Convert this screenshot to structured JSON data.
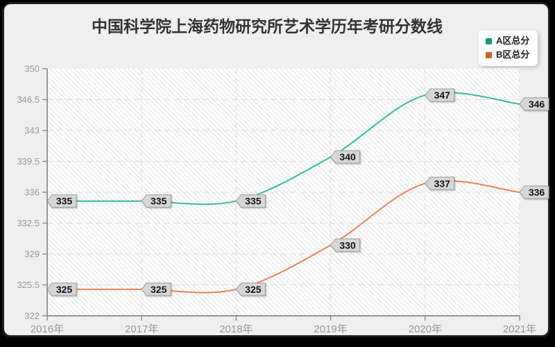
{
  "title": "中国科学院上海药物研究所艺术学历年考研分数线",
  "legend": {
    "items": [
      {
        "label": "A区总分",
        "color": "#0f9d6e"
      },
      {
        "label": "B区总分",
        "color": "#d4622b"
      }
    ]
  },
  "chart_data": {
    "type": "line",
    "title": "中国科学院上海药物研究所艺术学历年考研分数线",
    "categories": [
      "2016年",
      "2017年",
      "2018年",
      "2019年",
      "2020年",
      "2021年"
    ],
    "series": [
      {
        "name": "A区总分",
        "values": [
          335,
          335,
          335,
          340,
          347,
          346
        ],
        "marker_color": "#0f9d6e",
        "line_color": "#33c093"
      },
      {
        "name": "B区总分",
        "values": [
          325,
          325,
          325,
          330,
          337,
          336
        ],
        "marker_color": "#d4622b",
        "line_color": "#ec8351"
      }
    ],
    "xlabel": "",
    "ylabel": "",
    "ylim": [
      322,
      350
    ],
    "yticks": [
      322,
      325.5,
      329,
      332.5,
      336,
      339.5,
      343,
      346.5,
      350
    ],
    "grid": "dashed horizontal and vertical",
    "plot_background": "light diagonal hatch",
    "legend_position": "top-right",
    "smooth": true,
    "point_labels": "gray left-arrow callouts at every point"
  },
  "colors": {
    "page_bg": "#000000",
    "card_bg": "#efefef",
    "card_border": "#1e1e1e",
    "axis": "#8a8a8a",
    "grid": "#e0e0e0",
    "tick_label": "#999999",
    "title_text": "#333333",
    "legend_bg": "#ffffff",
    "legend_text": "#222222",
    "callout_bg": "#d6d6d6",
    "callout_border": "#9e9e9e",
    "callout_text": "#161616",
    "hatch_base": "#ffffff",
    "hatch_stripe": "#ebebeb"
  }
}
